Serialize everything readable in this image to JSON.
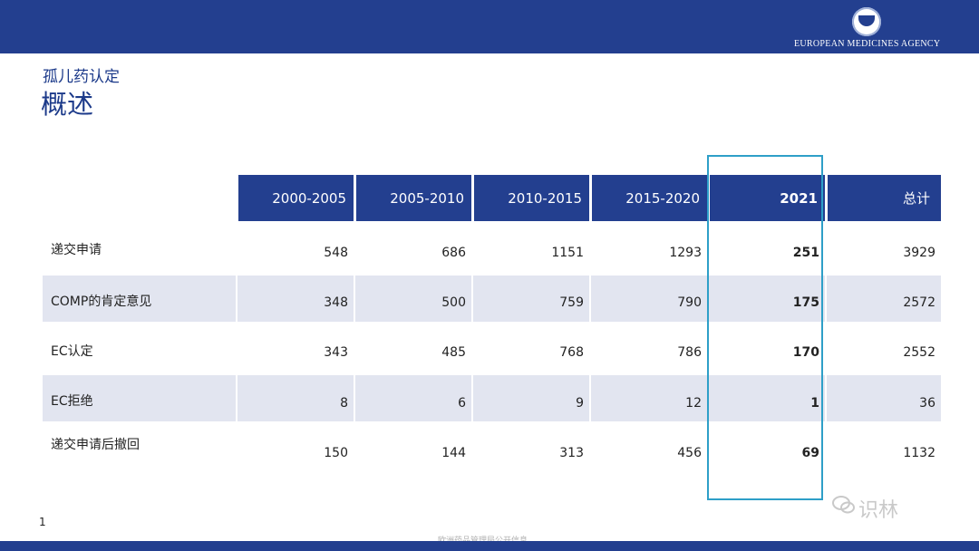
{
  "header": {
    "agency": "EUROPEAN MEDICINES AGENCY"
  },
  "slide": {
    "subtitle": "孤儿药认定",
    "title": "概述",
    "page_number": "1",
    "footer": "欧洲药品管理局公开信息",
    "watermark": "识林"
  },
  "table": {
    "columns": [
      "2000-2005",
      "2005-2010",
      "2010-2015",
      "2015-2020",
      "2021",
      "总计"
    ],
    "rows": [
      {
        "label": "递交申请",
        "values": [
          "548",
          "686",
          "1151",
          "1293",
          "251",
          "3929"
        ]
      },
      {
        "label": "COMP的肯定意见",
        "values": [
          "348",
          "500",
          "759",
          "790",
          "175",
          "2572"
        ]
      },
      {
        "label": "EC认定",
        "values": [
          "343",
          "485",
          "768",
          "786",
          "170",
          "2552"
        ]
      },
      {
        "label": "EC拒绝",
        "values": [
          "8",
          "6",
          "9",
          "12",
          "1",
          "36"
        ]
      },
      {
        "label": "递交申请后撤回",
        "values": [
          "150",
          "144",
          "313",
          "456",
          "69",
          "1132"
        ]
      }
    ]
  },
  "colors": {
    "header_blue": "#233f8f",
    "highlight_border": "#2e9fc8",
    "row_shade": "#e2e5f0"
  }
}
